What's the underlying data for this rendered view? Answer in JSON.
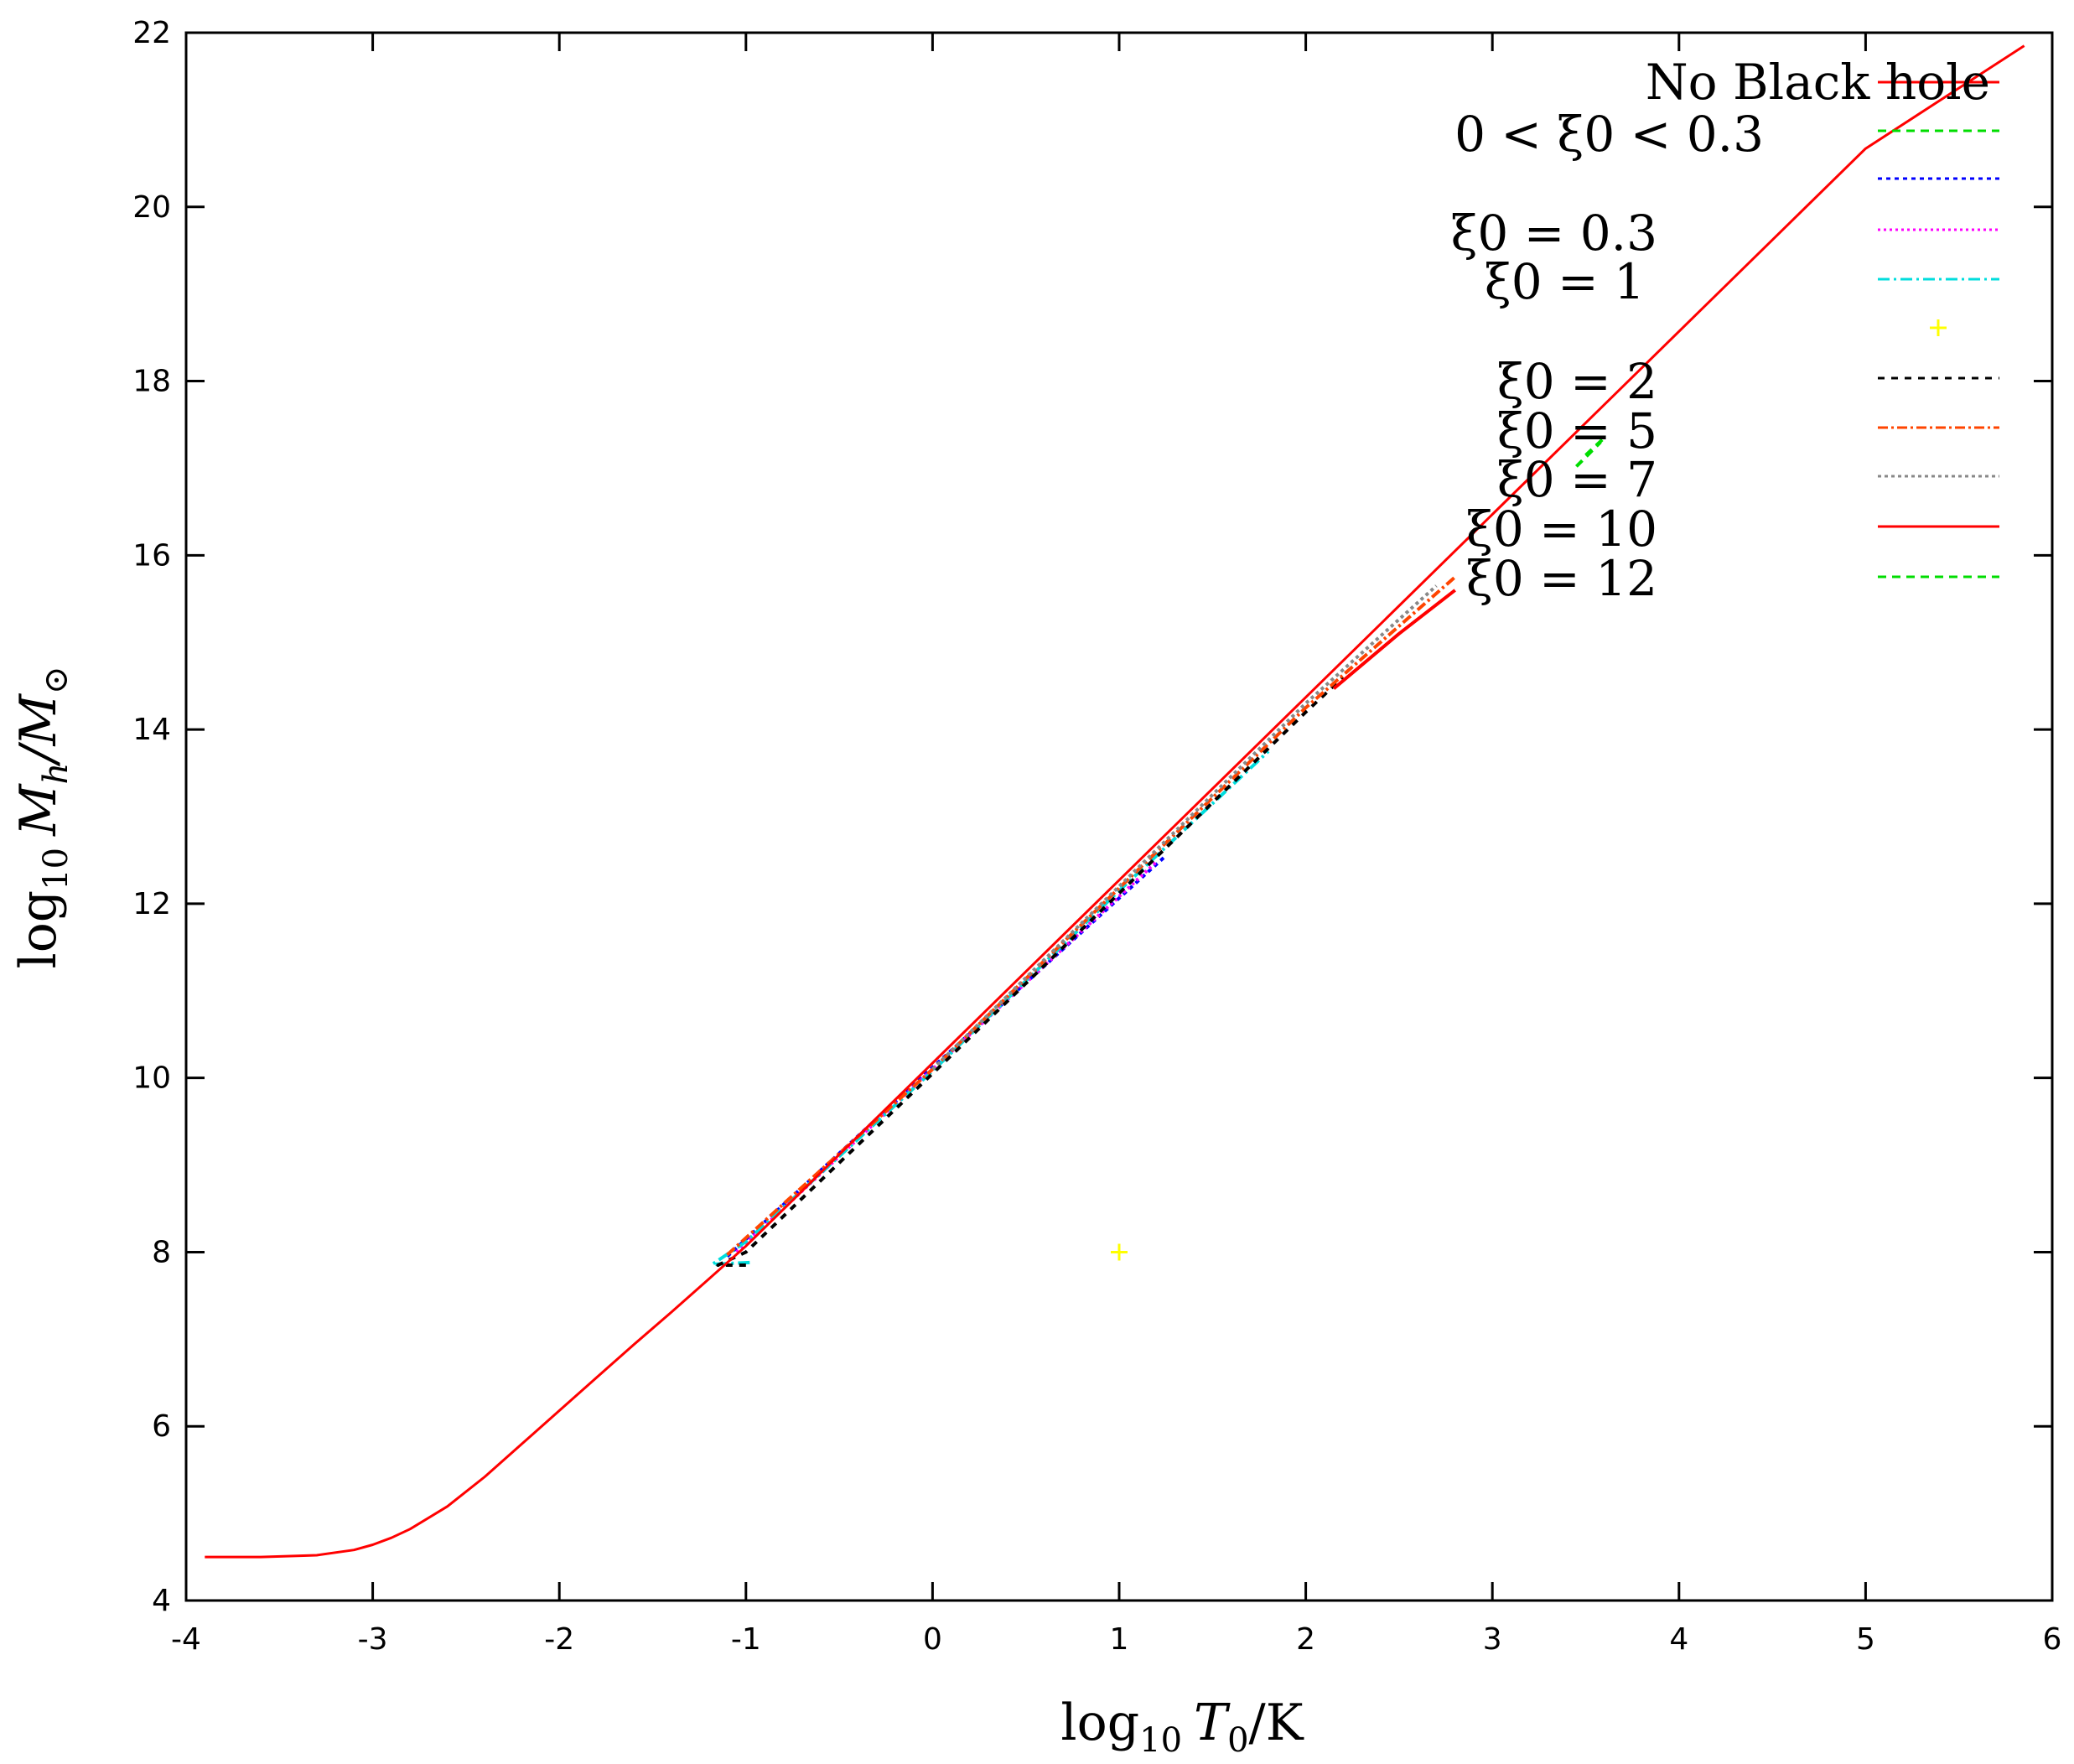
{
  "chart_data": {
    "type": "line",
    "xlabel_parts": {
      "base": "log",
      "sub": "10",
      "var": "T",
      "var_sub": "0",
      "unit": "/K"
    },
    "ylabel_parts": {
      "base": "log",
      "sub": "10",
      "var": "M",
      "var_sub": "h",
      "unit": "/M",
      "unit_sub": "⊙"
    },
    "xlim": [
      -4,
      6
    ],
    "ylim": [
      4,
      22
    ],
    "xticks": [
      -4,
      -3,
      -2,
      -1,
      0,
      1,
      2,
      3,
      4,
      5,
      6
    ],
    "yticks": [
      4,
      6,
      8,
      10,
      12,
      14,
      16,
      18,
      20,
      22
    ],
    "xtick_labels": [
      "-4",
      "-3",
      "-2",
      "-1",
      "0",
      "1",
      "2",
      "3",
      "4",
      "5",
      "6"
    ],
    "ytick_labels": [
      "4",
      "6",
      "8",
      "10",
      "12",
      "14",
      "16",
      "18",
      "20",
      "22"
    ],
    "grid": false,
    "legend_placement": "top-right",
    "series": [
      {
        "name": "No Black hole",
        "style": "line",
        "color": "#ff0000",
        "dash": "",
        "x": [
          -3.9,
          -3.6,
          -3.3,
          -3.1,
          -3.0,
          -2.9,
          -2.8,
          -2.6,
          -2.4,
          -2.2,
          -2.0,
          -1.8,
          -1.6,
          -1.4,
          -1.2,
          -1.0,
          0.0,
          1.0,
          2.0,
          3.0,
          4.0,
          5.0,
          5.85
        ],
        "y": [
          4.5,
          4.5,
          4.52,
          4.58,
          4.64,
          4.72,
          4.82,
          5.08,
          5.42,
          5.8,
          6.18,
          6.56,
          6.94,
          7.31,
          7.69,
          8.07,
          10.17,
          12.27,
          14.37,
          16.47,
          18.57,
          20.67,
          21.85
        ]
      },
      {
        "name": "0 < ξ0 < 0.3",
        "style": "line",
        "color": "#00dd00",
        "dash": "10,7",
        "x": [
          3.45,
          3.58
        ],
        "y": [
          17.02,
          17.3
        ]
      },
      {
        "name": "",
        "style": "line",
        "color": "#0000ff",
        "dash": "5,5",
        "x": [
          -1.1,
          0.0,
          1.25
        ],
        "y": [
          7.95,
          10.12,
          12.55
        ]
      },
      {
        "name": "ξ0 = 0.3",
        "style": "line",
        "color": "#ff00ff",
        "dash": "3,4",
        "x": [
          -1.05,
          0.0,
          1.2
        ],
        "y": [
          8.0,
          10.1,
          12.48
        ]
      },
      {
        "name": "ξ0 = 1",
        "style": "line",
        "color": "#00dddd",
        "dash": "14,5,3,5",
        "x": [
          -0.98,
          -1.18,
          -1.0,
          0.0,
          1.0,
          1.8
        ],
        "y": [
          7.88,
          7.86,
          8.12,
          10.08,
          12.15,
          13.75
        ]
      },
      {
        "name": "",
        "style": "points",
        "color": "#ffff00",
        "x": [
          1.0
        ],
        "y": [
          8.0
        ]
      },
      {
        "name": "ξ0 = 2",
        "style": "line",
        "color": "#000000",
        "dash": "8,8",
        "x": [
          -1.0,
          -1.15,
          -1.0,
          0.0,
          1.0,
          2.0,
          2.2
        ],
        "y": [
          7.85,
          7.85,
          8.0,
          10.05,
          12.12,
          14.2,
          14.6
        ]
      },
      {
        "name": "ξ0 = 5",
        "style": "line",
        "color": "#ff4400",
        "dash": "12,4,3,4",
        "x": [
          -1.1,
          0.0,
          1.0,
          2.0,
          2.8
        ],
        "y": [
          7.97,
          10.1,
          12.18,
          14.25,
          15.75
        ]
      },
      {
        "name": "ξ0 = 7",
        "style": "line",
        "color": "#888888",
        "dash": "4,4",
        "x": [
          0.0,
          1.0,
          2.0,
          2.7
        ],
        "y": [
          10.1,
          12.2,
          14.3,
          15.65
        ]
      },
      {
        "name": "ξ0 = 10",
        "style": "line",
        "color": "#ff0000",
        "dash": "",
        "x": [
          2.15,
          2.5,
          2.8
        ],
        "y": [
          14.47,
          15.1,
          15.6
        ]
      },
      {
        "name": "ξ0 = 12",
        "style": "line",
        "color": "#00dd00",
        "dash": "10,7",
        "x": [
          3.5,
          3.6
        ],
        "y": [
          17.15,
          17.35
        ]
      }
    ]
  }
}
